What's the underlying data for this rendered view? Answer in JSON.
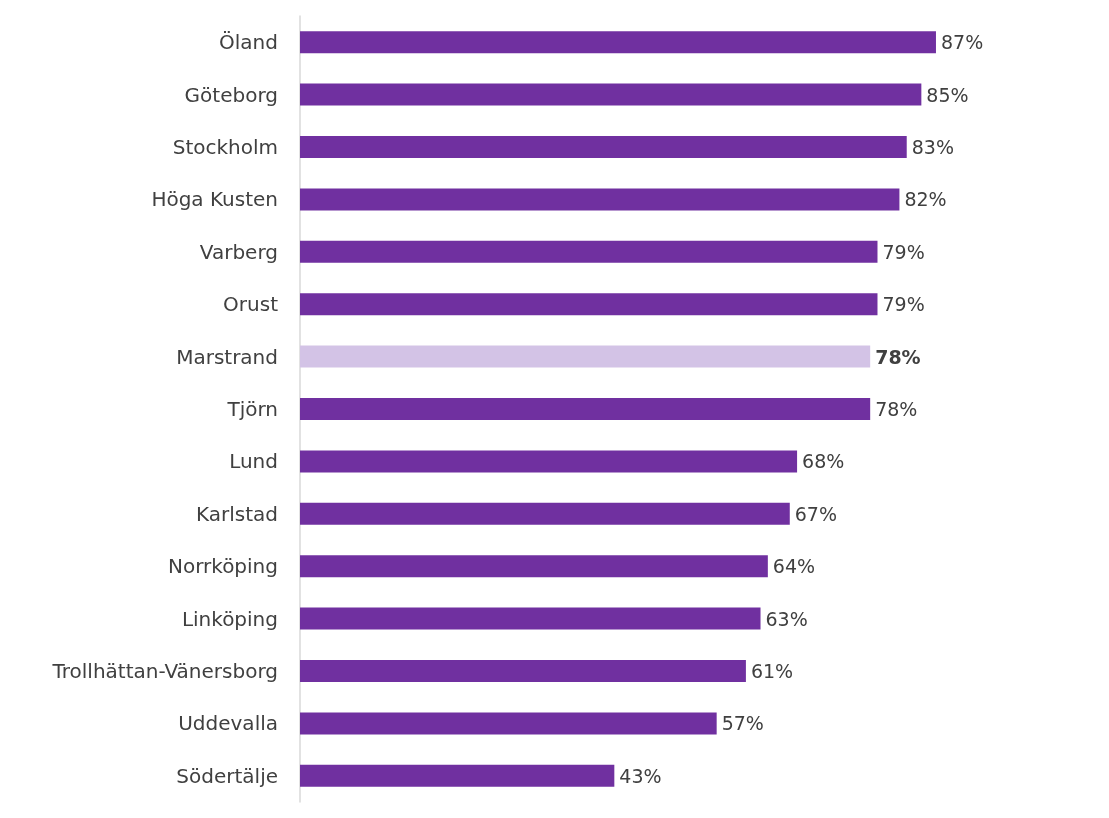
{
  "chart_data": {
    "type": "bar",
    "orientation": "horizontal",
    "categories": [
      "Öland",
      "Göteborg",
      "Stockholm",
      "Höga Kusten",
      "Varberg",
      "Orust",
      "Marstrand",
      "Tjörn",
      "Lund",
      "Karlstad",
      "Norrköping",
      "Linköping",
      "Trollhättan-Vänersborg",
      "Uddevalla",
      "Södertälje"
    ],
    "values": [
      87,
      85,
      83,
      82,
      79,
      79,
      78,
      78,
      68,
      67,
      64,
      63,
      61,
      57,
      43
    ],
    "colors": [
      "#7030a0",
      "#7030a0",
      "#7030a0",
      "#7030a0",
      "#7030a0",
      "#7030a0",
      "#d3c3e6",
      "#7030a0",
      "#7030a0",
      "#7030a0",
      "#7030a0",
      "#7030a0",
      "#7030a0",
      "#7030a0",
      "#7030a0"
    ],
    "value_labels": [
      "87%",
      "85%",
      "83%",
      "82%",
      "79%",
      "79%",
      "78%",
      "78%",
      "68%",
      "67%",
      "64%",
      "63%",
      "61%",
      "57%",
      "43%"
    ],
    "grid": false
  }
}
